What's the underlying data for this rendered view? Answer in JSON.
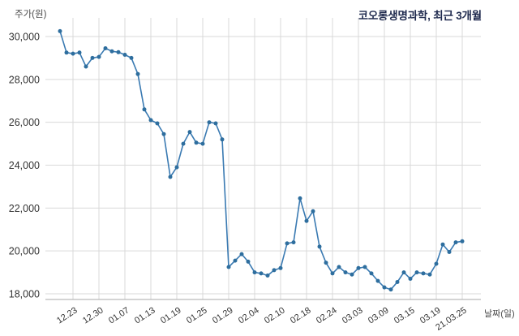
{
  "chart": {
    "title": "코오롱생명과학, 최근 3개월",
    "y_axis_title": "주가(원)",
    "x_axis_title": "날짜(일)"
  },
  "colors": {
    "line": "#3a7ab2",
    "marker": "#2e6e9e",
    "grid": "#d9d9d9",
    "axis_line": "#aaaaaa",
    "tick_text": "#333333",
    "title_text": "#1f2a4e",
    "background": "#ffffff"
  },
  "chart_data": {
    "type": "line",
    "title": "코오롱생명과학, 최근 3개월",
    "ylabel": "주가(원)",
    "xlabel": "날짜(일)",
    "series_name": "주가",
    "grid": true,
    "legend": "none",
    "ylim": [
      18000,
      30000
    ],
    "y_ticks": [
      {
        "value": 30000,
        "label": "30,000"
      },
      {
        "value": 28000,
        "label": "28,000"
      },
      {
        "value": 26000,
        "label": "26,000"
      },
      {
        "value": 24000,
        "label": "24,000"
      },
      {
        "value": 22000,
        "label": "22,000"
      },
      {
        "value": 20000,
        "label": "20,000"
      },
      {
        "value": 18000,
        "label": "18,000"
      }
    ],
    "x_ticks": [
      {
        "index": 2,
        "label": "12.23"
      },
      {
        "index": 6,
        "label": "12.30"
      },
      {
        "index": 10,
        "label": "01.07"
      },
      {
        "index": 14,
        "label": "01.13"
      },
      {
        "index": 18,
        "label": "01.19"
      },
      {
        "index": 22,
        "label": "01.25"
      },
      {
        "index": 26,
        "label": "01.29"
      },
      {
        "index": 30,
        "label": "02.04"
      },
      {
        "index": 34,
        "label": "02.10"
      },
      {
        "index": 38,
        "label": "02.18"
      },
      {
        "index": 42,
        "label": "02.24"
      },
      {
        "index": 46,
        "label": "03.03"
      },
      {
        "index": 50,
        "label": "03.09"
      },
      {
        "index": 54,
        "label": "03.15"
      },
      {
        "index": 58,
        "label": "03.19"
      },
      {
        "index": 62,
        "label": "21.03.25"
      }
    ],
    "dates": [
      "12.21",
      "12.22",
      "12.23",
      "12.24",
      "12.28",
      "12.29",
      "12.30",
      "01.04",
      "01.05",
      "01.06",
      "01.07",
      "01.08",
      "01.11",
      "01.12",
      "01.13",
      "01.14",
      "01.15",
      "01.18",
      "01.19",
      "01.20",
      "01.21",
      "01.22",
      "01.25",
      "01.26",
      "01.27",
      "01.28",
      "01.29",
      "02.01",
      "02.02",
      "02.03",
      "02.04",
      "02.05",
      "02.08",
      "02.09",
      "02.10",
      "02.15",
      "02.16",
      "02.17",
      "02.18",
      "02.19",
      "02.22",
      "02.23",
      "02.24",
      "02.25",
      "02.26",
      "03.02",
      "03.03",
      "03.04",
      "03.05",
      "03.08",
      "03.09",
      "03.10",
      "03.11",
      "03.12",
      "03.15",
      "03.16",
      "03.17",
      "03.18",
      "03.19",
      "03.22",
      "03.23",
      "03.24",
      "03.25"
    ],
    "values": [
      30250,
      29250,
      29200,
      29250,
      28600,
      29000,
      29050,
      29450,
      29310,
      29270,
      29150,
      29000,
      28250,
      26600,
      26100,
      25950,
      25450,
      23450,
      23900,
      25000,
      25550,
      25050,
      25000,
      26000,
      25950,
      25200,
      19250,
      19550,
      19850,
      19500,
      19000,
      18950,
      18850,
      19100,
      19200,
      20350,
      20400,
      22450,
      21400,
      21850,
      20200,
      19450,
      18950,
      19250,
      19000,
      18900,
      19200,
      19250,
      18950,
      18600,
      18300,
      18200,
      18550,
      19000,
      18700,
      19000,
      18950,
      18900,
      19400,
      20300,
      19950,
      20400,
      20450
    ]
  }
}
